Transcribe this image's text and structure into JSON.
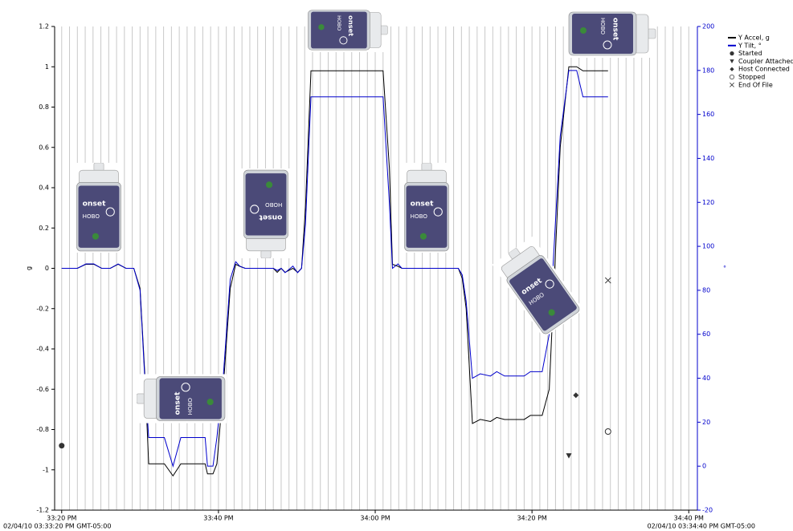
{
  "chart_data": {
    "type": "line",
    "ylabel": "g",
    "y2label": "°",
    "start_label": "02/04/10 03:33:20 PM GMT-05:00",
    "end_label": "02/04/10 03:34:40 PM GMT-05:00",
    "x": [
      0,
      2,
      3.1,
      4.1,
      5.1,
      6.2,
      7.2,
      8.2,
      9.2,
      10.0,
      10.6,
      11.1,
      13.1,
      14.2,
      15.2,
      18.3,
      18.6,
      19.3,
      19.8,
      20.6,
      21.5,
      22.2,
      22.7,
      23.4,
      27.0,
      27.5,
      28.0,
      28.5,
      29.5,
      30.1,
      30.6,
      31.1,
      31.8,
      41.0,
      41.8,
      42.2,
      42.9,
      43.4,
      50.6,
      51.1,
      51.6,
      52.4,
      53.4,
      54.7,
      55.5,
      56.5,
      59.0,
      59.8,
      61.3,
      62.2,
      63.6,
      64.7,
      65.7,
      66.5,
      69.7
    ],
    "series": [
      {
        "name": "Y Accel, g",
        "color": "#000000",
        "values": [
          0,
          0,
          0.02,
          0.02,
          0,
          0,
          0.02,
          0,
          0,
          -0.1,
          -0.52,
          -0.97,
          -0.97,
          -1.03,
          -0.97,
          -0.97,
          -1.02,
          -1.02,
          -0.97,
          -0.6,
          -0.1,
          0.02,
          0.01,
          0,
          0,
          -0.02,
          0,
          -0.02,
          0,
          -0.02,
          0,
          0.3,
          0.98,
          0.98,
          0.5,
          0.02,
          0.01,
          0,
          0,
          -0.05,
          -0.2,
          -0.77,
          -0.75,
          -0.76,
          -0.74,
          -0.75,
          -0.75,
          -0.73,
          -0.73,
          -0.6,
          0.6,
          1.0,
          1.0,
          0.98,
          0.98
        ]
      },
      {
        "name": "Y Tilt, °",
        "color": "#0000cc",
        "axis": "y2",
        "values": [
          90,
          90,
          92,
          92,
          90,
          90,
          92,
          90,
          90,
          80,
          40,
          13,
          13,
          0,
          13,
          13,
          0,
          0,
          13,
          40,
          85,
          93,
          91,
          90,
          90,
          89,
          90,
          88,
          91,
          88,
          90,
          110,
          168,
          168,
          120,
          90,
          92,
          90,
          90,
          87,
          75,
          40,
          42,
          41,
          43,
          41,
          41,
          43,
          43,
          60,
          150,
          180,
          180,
          168,
          168
        ]
      }
    ],
    "events": [
      {
        "name": "Started",
        "marker": "filled-circle",
        "x": 0,
        "y": -0.88
      },
      {
        "name": "Coupler Attached",
        "marker": "triangle-down",
        "x": 64.7,
        "y": -0.93
      },
      {
        "name": "Host Connected",
        "marker": "diamond",
        "x": 65.6,
        "y": -0.63
      },
      {
        "name": "Stopped",
        "marker": "open-circle",
        "x": 69.7,
        "y": -0.81
      },
      {
        "name": "End Of File",
        "marker": "cross",
        "x": 69.7,
        "y": -0.06
      }
    ],
    "xlim": [
      -0.9,
      81.1
    ],
    "xticks": [
      {
        "value": 0,
        "label": "33:20 PM"
      },
      {
        "value": 20,
        "label": "33:40 PM"
      },
      {
        "value": 40,
        "label": "34:00 PM"
      },
      {
        "value": 60,
        "label": "34:20 PM"
      },
      {
        "value": 80,
        "label": "34:40 PM"
      }
    ],
    "xgrid": [
      0,
      1,
      2,
      3,
      4,
      5,
      6,
      7,
      8,
      9,
      10,
      11,
      12,
      13,
      14,
      15,
      16,
      17,
      18,
      19,
      20,
      21,
      22,
      23,
      24,
      25,
      26,
      27,
      28,
      29,
      30,
      31,
      32,
      33,
      34,
      35,
      36,
      37,
      38,
      39,
      40,
      41,
      42,
      43,
      44,
      45,
      46,
      47,
      48,
      49,
      50,
      51,
      52,
      53,
      54,
      55,
      56,
      57,
      58,
      59,
      60,
      61,
      62,
      63,
      64,
      65,
      66,
      67,
      68,
      69,
      70,
      71,
      72,
      73,
      74,
      75,
      76,
      77,
      78,
      79,
      80
    ],
    "ylim": [
      -1.2,
      1.2
    ],
    "yticks": [
      -1.2,
      -1,
      -0.8,
      -0.6,
      -0.4,
      -0.2,
      0,
      0.2,
      0.4,
      0.6,
      0.8,
      1,
      1.2
    ],
    "y2lim": [
      -20,
      200
    ],
    "y2ticks": [
      -20,
      0,
      20,
      40,
      60,
      80,
      100,
      120,
      140,
      160,
      180,
      200
    ],
    "y2color": "#0000cc"
  }
}
